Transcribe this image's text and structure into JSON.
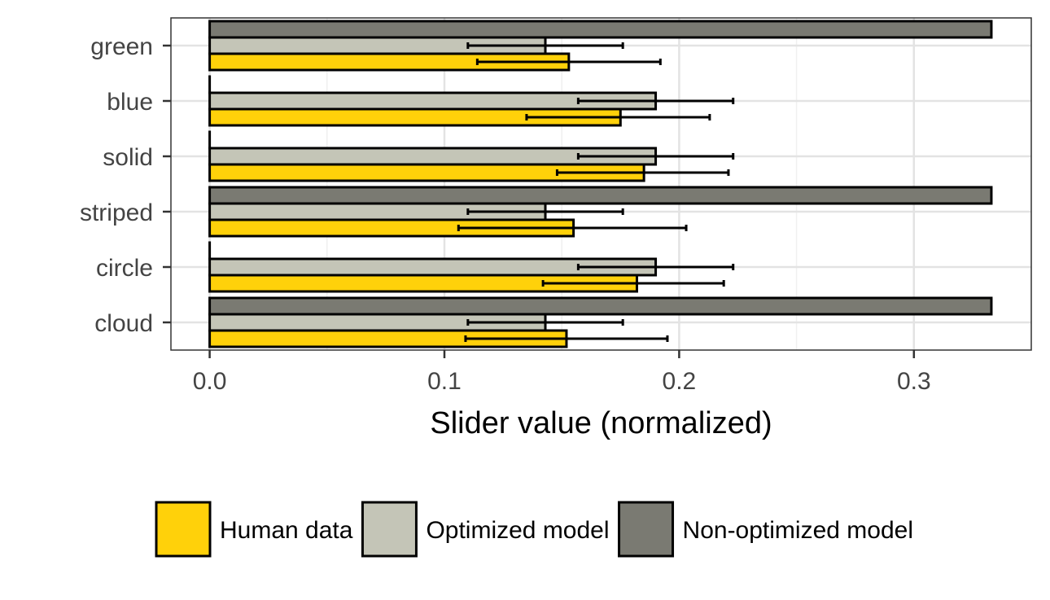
{
  "chart_data": {
    "type": "bar",
    "orientation": "horizontal",
    "title": "",
    "xlabel": "Slider value (normalized)",
    "ylabel": "",
    "xlim": [
      -0.0165,
      0.35
    ],
    "x_ticks": [
      0.0,
      0.1,
      0.2,
      0.3
    ],
    "x_tick_labels": [
      "0.0",
      "0.1",
      "0.2",
      "0.3"
    ],
    "categories": [
      "green",
      "blue",
      "solid",
      "striped",
      "circle",
      "cloud"
    ],
    "grid": true,
    "legend_position": "bottom",
    "series": [
      {
        "name": "Human data",
        "color": "#FFD10A",
        "values": [
          0.153,
          0.175,
          0.185,
          0.155,
          0.182,
          0.152
        ],
        "error_low": [
          0.114,
          0.135,
          0.148,
          0.106,
          0.142,
          0.109
        ],
        "error_high": [
          0.192,
          0.213,
          0.221,
          0.203,
          0.219,
          0.195
        ]
      },
      {
        "name": "Optimized model",
        "color": "#C4C5B7",
        "values": [
          0.143,
          0.19,
          0.19,
          0.143,
          0.19,
          0.143
        ],
        "error_low": [
          0.11,
          0.157,
          0.157,
          0.11,
          0.157,
          0.11
        ],
        "error_high": [
          0.176,
          0.223,
          0.223,
          0.176,
          0.223,
          0.176
        ]
      },
      {
        "name": "Non-optimized model",
        "color": "#7A7A72",
        "values": [
          0.333,
          0.0,
          0.0,
          0.333,
          0.0,
          0.333
        ]
      }
    ]
  }
}
